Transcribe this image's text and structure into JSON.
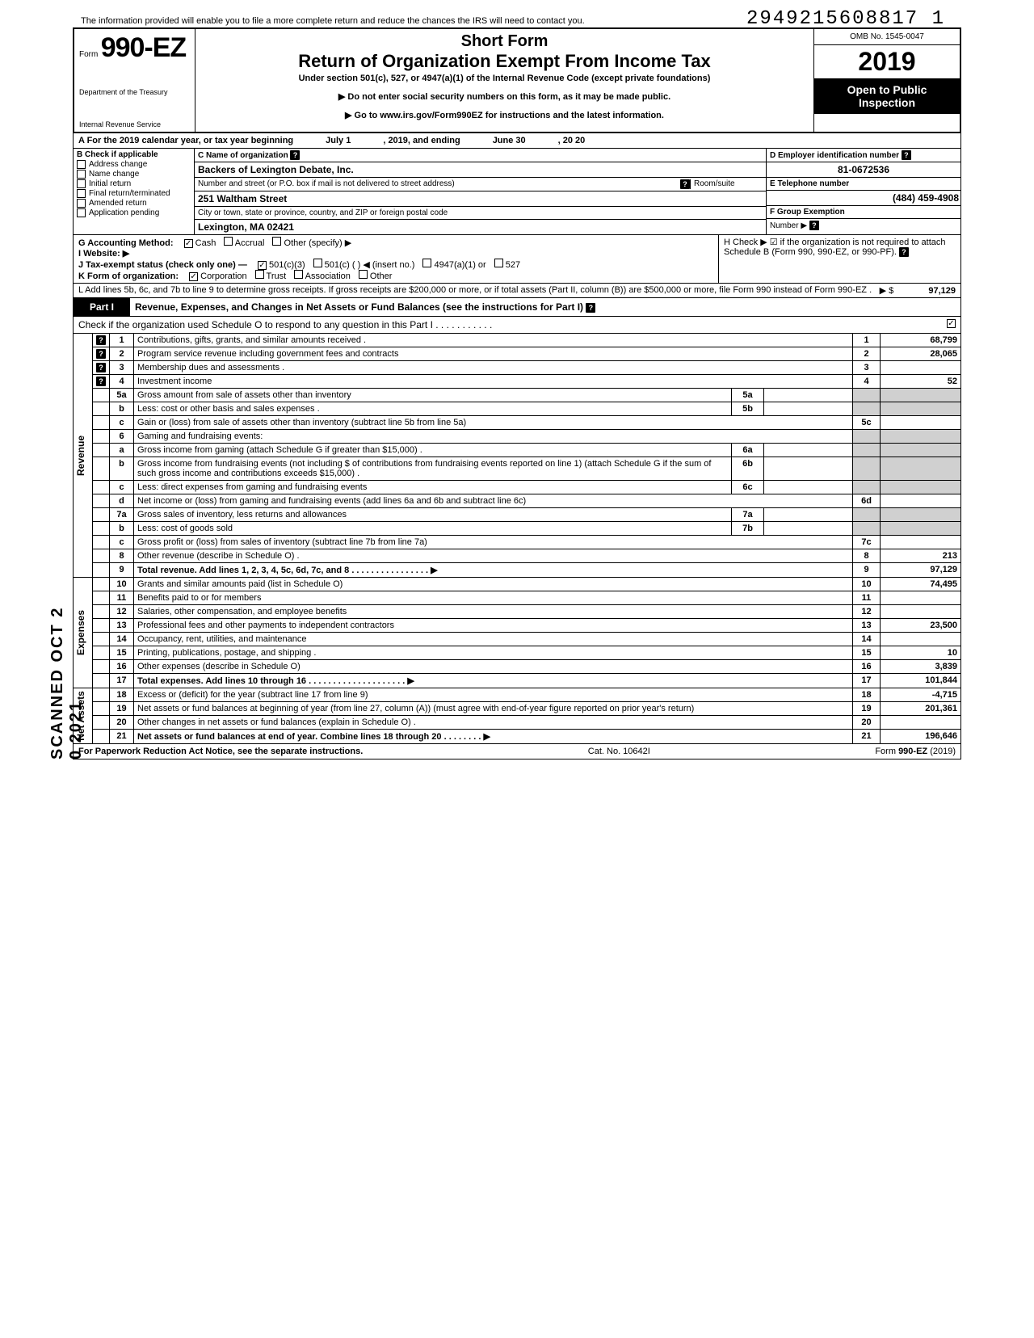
{
  "doc_id": "2949215608817  1",
  "top_note": "The information provided will enable you to file a more complete return and reduce the chances the IRS will need to contact you.",
  "form": {
    "prefix": "Form",
    "number": "990-EZ",
    "dept1": "Department of the Treasury",
    "dept2": "Internal Revenue Service"
  },
  "header": {
    "title1": "Short Form",
    "title2": "Return of Organization Exempt From Income Tax",
    "subtitle": "Under section 501(c), 527, or 4947(a)(1) of the Internal Revenue Code (except private foundations)",
    "warn": "▶ Do not enter social security numbers on this form, as it may be made public.",
    "goto": "▶ Go to www.irs.gov/Form990EZ for instructions and the latest information.",
    "omb": "OMB No. 1545-0047",
    "year": "2019",
    "open1": "Open to Public",
    "open2": "Inspection"
  },
  "lineA": {
    "text": "A  For the 2019 calendar year, or tax year beginning",
    "begin": "July 1",
    "mid": ", 2019, and ending",
    "end": "June 30",
    "tail": ", 20   20"
  },
  "sectionB": {
    "label": "B  Check if applicable",
    "items": [
      "Address change",
      "Name change",
      "Initial return",
      "Final return/terminated",
      "Amended return",
      "Application pending"
    ]
  },
  "sectionC": {
    "label": "C  Name of organization",
    "org": "Backers of Lexington Debate, Inc.",
    "addr_label": "Number and street (or P.O. box if mail is not delivered to street address)",
    "room_label": "Room/suite",
    "street": "251 Waltham Street",
    "city_label": "City or town, state or province, country, and ZIP or foreign postal code",
    "city": "Lexington, MA 02421"
  },
  "sectionD": {
    "label": "D Employer identification number",
    "value": "81-0672536"
  },
  "sectionE": {
    "label": "E Telephone number",
    "value": "(484) 459-4908"
  },
  "sectionF": {
    "label": "F Group Exemption",
    "label2": "Number ▶"
  },
  "lineG": "G  Accounting Method:",
  "lineG_opts": [
    "Cash",
    "Accrual",
    "Other (specify) ▶"
  ],
  "lineG_checked": 0,
  "lineH": "H  Check ▶ ☑ if the organization is not required to attach Schedule B (Form 990, 990-EZ, or 990-PF).",
  "lineI": "I   Website: ▶",
  "lineJ": "J  Tax-exempt status (check only one) —",
  "lineJ_opts": [
    "501(c)(3)",
    "501(c) (        ) ◀ (insert no.)",
    "4947(a)(1) or",
    "527"
  ],
  "lineJ_checked": 0,
  "lineK": "K  Form of organization:",
  "lineK_opts": [
    "Corporation",
    "Trust",
    "Association",
    "Other"
  ],
  "lineK_checked": 0,
  "lineL": {
    "text": "L  Add lines 5b, 6c, and 7b to line 9 to determine gross receipts. If gross receipts are $200,000 or more, or if total assets (Part II, column (B)) are $500,000 or more, file Form 990 instead of Form 990-EZ .",
    "arrow": "▶  $",
    "value": "97,129"
  },
  "part1": {
    "tab": "Part I",
    "title": "Revenue, Expenses, and Changes in Net Assets or Fund Balances (see the instructions for Part I)",
    "sched_o": "Check if the organization used Schedule O to respond to any question in this Part I  .  .  .  .  .  .  .  .  .  .  .",
    "sched_o_checked": true
  },
  "side_labels": {
    "revenue": "Revenue",
    "expenses": "Expenses",
    "netassets": "Net Assets"
  },
  "rows": [
    {
      "n": "1",
      "desc": "Contributions, gifts, grants, and similar amounts received .",
      "rn": "1",
      "rv": "68,799"
    },
    {
      "n": "2",
      "desc": "Program service revenue including government fees and contracts",
      "rn": "2",
      "rv": "28,065"
    },
    {
      "n": "3",
      "desc": "Membership dues and assessments .",
      "rn": "3",
      "rv": ""
    },
    {
      "n": "4",
      "desc": "Investment income",
      "rn": "4",
      "rv": "52"
    },
    {
      "n": "5a",
      "desc": "Gross amount from sale of assets other than inventory",
      "mn": "5a",
      "mv": ""
    },
    {
      "n": "b",
      "desc": "Less: cost or other basis and sales expenses .",
      "mn": "5b",
      "mv": ""
    },
    {
      "n": "c",
      "desc": "Gain or (loss) from sale of assets other than inventory (subtract line 5b from line 5a)",
      "rn": "5c",
      "rv": ""
    },
    {
      "n": "6",
      "desc": "Gaming and fundraising events:"
    },
    {
      "n": "a",
      "desc": "Gross income from gaming (attach Schedule G if greater than $15,000) .",
      "mn": "6a",
      "mv": ""
    },
    {
      "n": "b",
      "desc": "Gross income from fundraising events (not including  $                of contributions from fundraising events reported on line 1) (attach Schedule G if the sum of such gross income and contributions exceeds $15,000) .",
      "mn": "6b",
      "mv": ""
    },
    {
      "n": "c",
      "desc": "Less: direct expenses from gaming and fundraising events",
      "mn": "6c",
      "mv": ""
    },
    {
      "n": "d",
      "desc": "Net income or (loss) from gaming and fundraising events (add lines 6a and 6b and subtract line 6c)",
      "rn": "6d",
      "rv": ""
    },
    {
      "n": "7a",
      "desc": "Gross sales of inventory, less returns and allowances",
      "mn": "7a",
      "mv": ""
    },
    {
      "n": "b",
      "desc": "Less: cost of goods sold",
      "mn": "7b",
      "mv": ""
    },
    {
      "n": "c",
      "desc": "Gross profit or (loss) from sales of inventory (subtract line 7b from line 7a)",
      "rn": "7c",
      "rv": ""
    },
    {
      "n": "8",
      "desc": "Other revenue (describe in Schedule O) .",
      "rn": "8",
      "rv": "213"
    },
    {
      "n": "9",
      "desc": "Total revenue. Add lines 1, 2, 3, 4, 5c, 6d, 7c, and 8  .  .  .  .  .  .  .  .  .  .  .  .  .  .  .  .  ▶",
      "rn": "9",
      "rv": "97,129",
      "bold": true
    },
    {
      "n": "10",
      "desc": "Grants and similar amounts paid (list in Schedule O)",
      "rn": "10",
      "rv": "74,495"
    },
    {
      "n": "11",
      "desc": "Benefits paid to or for members",
      "rn": "11",
      "rv": ""
    },
    {
      "n": "12",
      "desc": "Salaries, other compensation, and employee benefits",
      "rn": "12",
      "rv": ""
    },
    {
      "n": "13",
      "desc": "Professional fees and other payments to independent contractors",
      "rn": "13",
      "rv": "23,500"
    },
    {
      "n": "14",
      "desc": "Occupancy, rent, utilities, and maintenance",
      "rn": "14",
      "rv": ""
    },
    {
      "n": "15",
      "desc": "Printing, publications, postage, and shipping .",
      "rn": "15",
      "rv": "10"
    },
    {
      "n": "16",
      "desc": "Other expenses (describe in Schedule O)",
      "rn": "16",
      "rv": "3,839"
    },
    {
      "n": "17",
      "desc": "Total expenses. Add lines 10 through 16  .  .  .  .  .  .  .  .  .  .  .  .  .  .  .  .  .  .  .  .  ▶",
      "rn": "17",
      "rv": "101,844",
      "bold": true
    },
    {
      "n": "18",
      "desc": "Excess or (deficit) for the year (subtract line 17 from line 9)",
      "rn": "18",
      "rv": "-4,715"
    },
    {
      "n": "19",
      "desc": "Net assets or fund balances at beginning of year (from line 27, column (A)) (must agree with end-of-year figure reported on prior year's return)",
      "rn": "19",
      "rv": "201,361"
    },
    {
      "n": "20",
      "desc": "Other changes in net assets or fund balances (explain in Schedule O) .",
      "rn": "20",
      "rv": ""
    },
    {
      "n": "21",
      "desc": "Net assets or fund balances at end of year. Combine lines 18 through 20  .  .  .  .  .  .  .  .  ▶",
      "rn": "21",
      "rv": "196,646",
      "bold": true
    }
  ],
  "footer": {
    "left": "For Paperwork Reduction Act Notice, see the separate instructions.",
    "mid": "Cat. No. 10642I",
    "right": "Form 990-EZ (2019)"
  },
  "stamp": "SCANNED OCT 2 0 2021"
}
